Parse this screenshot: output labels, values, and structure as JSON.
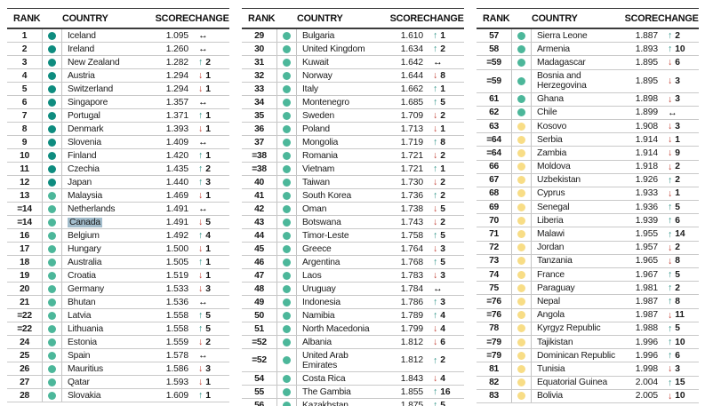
{
  "columns": [
    "RANK",
    "COUNTRY",
    "SCORE",
    "CHANGE"
  ],
  "icons": {
    "up": "↑",
    "down": "↓",
    "same": "↔"
  },
  "colors": {
    "band_very_high": "#0e8c7f",
    "band_high": "#4cb79a",
    "band_medium": "#f8dd86",
    "arrow_up": "#1f8a7e",
    "arrow_down": "#c0392e",
    "arrow_same": "#111111",
    "selection_highlight": "#a3bdcc"
  },
  "tables": [
    {
      "rows": [
        [
          "1",
          "Iceland",
          "1.095",
          "vh",
          "same",
          ""
        ],
        [
          "2",
          "Ireland",
          "1.260",
          "vh",
          "same",
          ""
        ],
        [
          "3",
          "New Zealand",
          "1.282",
          "vh",
          "up",
          "2"
        ],
        [
          "4",
          "Austria",
          "1.294",
          "vh",
          "down",
          "1"
        ],
        [
          "5",
          "Switzerland",
          "1.294",
          "vh",
          "down",
          "1"
        ],
        [
          "6",
          "Singapore",
          "1.357",
          "vh",
          "same",
          ""
        ],
        [
          "7",
          "Portugal",
          "1.371",
          "vh",
          "up",
          "1"
        ],
        [
          "8",
          "Denmark",
          "1.393",
          "vh",
          "down",
          "1"
        ],
        [
          "9",
          "Slovenia",
          "1.409",
          "vh",
          "same",
          ""
        ],
        [
          "10",
          "Finland",
          "1.420",
          "vh",
          "up",
          "1"
        ],
        [
          "11",
          "Czechia",
          "1.435",
          "vh",
          "up",
          "2"
        ],
        [
          "12",
          "Japan",
          "1.440",
          "vh",
          "up",
          "3"
        ],
        [
          "13",
          "Malaysia",
          "1.469",
          "h",
          "down",
          "1"
        ],
        [
          "=14",
          "Netherlands",
          "1.491",
          "h",
          "same",
          ""
        ],
        [
          "=14",
          "Canada",
          "1.491",
          "h",
          "down",
          "5",
          true
        ],
        [
          "16",
          "Belgium",
          "1.492",
          "h",
          "up",
          "4"
        ],
        [
          "17",
          "Hungary",
          "1.500",
          "h",
          "down",
          "1"
        ],
        [
          "18",
          "Australia",
          "1.505",
          "h",
          "up",
          "1"
        ],
        [
          "19",
          "Croatia",
          "1.519",
          "h",
          "down",
          "1"
        ],
        [
          "20",
          "Germany",
          "1.533",
          "h",
          "down",
          "3"
        ],
        [
          "21",
          "Bhutan",
          "1.536",
          "h",
          "same",
          ""
        ],
        [
          "=22",
          "Latvia",
          "1.558",
          "h",
          "up",
          "5"
        ],
        [
          "=22",
          "Lithuania",
          "1.558",
          "h",
          "up",
          "5"
        ],
        [
          "24",
          "Estonia",
          "1.559",
          "h",
          "down",
          "2"
        ],
        [
          "25",
          "Spain",
          "1.578",
          "h",
          "same",
          ""
        ],
        [
          "26",
          "Mauritius",
          "1.586",
          "h",
          "down",
          "3"
        ],
        [
          "27",
          "Qatar",
          "1.593",
          "h",
          "down",
          "1"
        ],
        [
          "28",
          "Slovakia",
          "1.609",
          "h",
          "up",
          "1"
        ]
      ]
    },
    {
      "rows": [
        [
          "29",
          "Bulgaria",
          "1.610",
          "h",
          "up",
          "1"
        ],
        [
          "30",
          "United Kingdom",
          "1.634",
          "h",
          "up",
          "2"
        ],
        [
          "31",
          "Kuwait",
          "1.642",
          "h",
          "same",
          ""
        ],
        [
          "32",
          "Norway",
          "1.644",
          "h",
          "down",
          "8"
        ],
        [
          "33",
          "Italy",
          "1.662",
          "h",
          "up",
          "1"
        ],
        [
          "34",
          "Montenegro",
          "1.685",
          "h",
          "up",
          "5"
        ],
        [
          "35",
          "Sweden",
          "1.709",
          "h",
          "down",
          "2"
        ],
        [
          "36",
          "Poland",
          "1.713",
          "h",
          "down",
          "1"
        ],
        [
          "37",
          "Mongolia",
          "1.719",
          "h",
          "up",
          "8"
        ],
        [
          "=38",
          "Romania",
          "1.721",
          "h",
          "down",
          "2"
        ],
        [
          "=38",
          "Vietnam",
          "1.721",
          "h",
          "up",
          "1"
        ],
        [
          "40",
          "Taiwan",
          "1.730",
          "h",
          "down",
          "2"
        ],
        [
          "41",
          "South Korea",
          "1.736",
          "h",
          "up",
          "2"
        ],
        [
          "42",
          "Oman",
          "1.738",
          "h",
          "down",
          "5"
        ],
        [
          "43",
          "Botswana",
          "1.743",
          "h",
          "down",
          "2"
        ],
        [
          "44",
          "Timor-Leste",
          "1.758",
          "h",
          "up",
          "5"
        ],
        [
          "45",
          "Greece",
          "1.764",
          "h",
          "down",
          "3"
        ],
        [
          "46",
          "Argentina",
          "1.768",
          "h",
          "up",
          "5"
        ],
        [
          "47",
          "Laos",
          "1.783",
          "h",
          "down",
          "3"
        ],
        [
          "48",
          "Uruguay",
          "1.784",
          "h",
          "same",
          ""
        ],
        [
          "49",
          "Indonesia",
          "1.786",
          "h",
          "up",
          "3"
        ],
        [
          "50",
          "Namibia",
          "1.789",
          "h",
          "up",
          "4"
        ],
        [
          "51",
          "North Macedonia",
          "1.799",
          "h",
          "down",
          "4"
        ],
        [
          "=52",
          "Albania",
          "1.812",
          "h",
          "down",
          "6"
        ],
        [
          "=52",
          "United Arab Emirates",
          "1.812",
          "h",
          "up",
          "2"
        ],
        [
          "54",
          "Costa Rica",
          "1.843",
          "h",
          "down",
          "4"
        ],
        [
          "55",
          "The Gambia",
          "1.855",
          "h",
          "up",
          "16"
        ],
        [
          "56",
          "Kazakhstan",
          "1.875",
          "h",
          "up",
          "5"
        ]
      ]
    },
    {
      "rows": [
        [
          "57",
          "Sierra Leone",
          "1.887",
          "h",
          "up",
          "2"
        ],
        [
          "58",
          "Armenia",
          "1.893",
          "h",
          "up",
          "10"
        ],
        [
          "=59",
          "Madagascar",
          "1.895",
          "h",
          "down",
          "6"
        ],
        [
          "=59",
          "Bosnia and Herzegovina",
          "1.895",
          "h",
          "down",
          "3"
        ],
        [
          "61",
          "Ghana",
          "1.898",
          "h",
          "down",
          "3"
        ],
        [
          "62",
          "Chile",
          "1.899",
          "h",
          "same",
          ""
        ],
        [
          "63",
          "Kosovo",
          "1.908",
          "m",
          "down",
          "3"
        ],
        [
          "=64",
          "Serbia",
          "1.914",
          "m",
          "down",
          "1"
        ],
        [
          "=64",
          "Zambia",
          "1.914",
          "m",
          "down",
          "9"
        ],
        [
          "66",
          "Moldova",
          "1.918",
          "m",
          "down",
          "2"
        ],
        [
          "67",
          "Uzbekistan",
          "1.926",
          "m",
          "up",
          "2"
        ],
        [
          "68",
          "Cyprus",
          "1.933",
          "m",
          "down",
          "1"
        ],
        [
          "69",
          "Senegal",
          "1.936",
          "m",
          "up",
          "5"
        ],
        [
          "70",
          "Liberia",
          "1.939",
          "m",
          "up",
          "6"
        ],
        [
          "71",
          "Malawi",
          "1.955",
          "m",
          "up",
          "14"
        ],
        [
          "72",
          "Jordan",
          "1.957",
          "m",
          "down",
          "2"
        ],
        [
          "73",
          "Tanzania",
          "1.965",
          "m",
          "down",
          "8"
        ],
        [
          "74",
          "France",
          "1.967",
          "m",
          "up",
          "5"
        ],
        [
          "75",
          "Paraguay",
          "1.981",
          "m",
          "up",
          "2"
        ],
        [
          "=76",
          "Nepal",
          "1.987",
          "m",
          "up",
          "8"
        ],
        [
          "=76",
          "Angola",
          "1.987",
          "m",
          "down",
          "11"
        ],
        [
          "78",
          "Kyrgyz Republic",
          "1.988",
          "m",
          "up",
          "5"
        ],
        [
          "=79",
          "Tajikistan",
          "1.996",
          "m",
          "up",
          "10"
        ],
        [
          "=79",
          "Dominican Republic",
          "1.996",
          "m",
          "up",
          "6"
        ],
        [
          "81",
          "Tunisia",
          "1.998",
          "m",
          "down",
          "3"
        ],
        [
          "82",
          "Equatorial Guinea",
          "2.004",
          "m",
          "up",
          "15"
        ],
        [
          "83",
          "Bolivia",
          "2.005",
          "m",
          "down",
          "10"
        ]
      ]
    }
  ]
}
